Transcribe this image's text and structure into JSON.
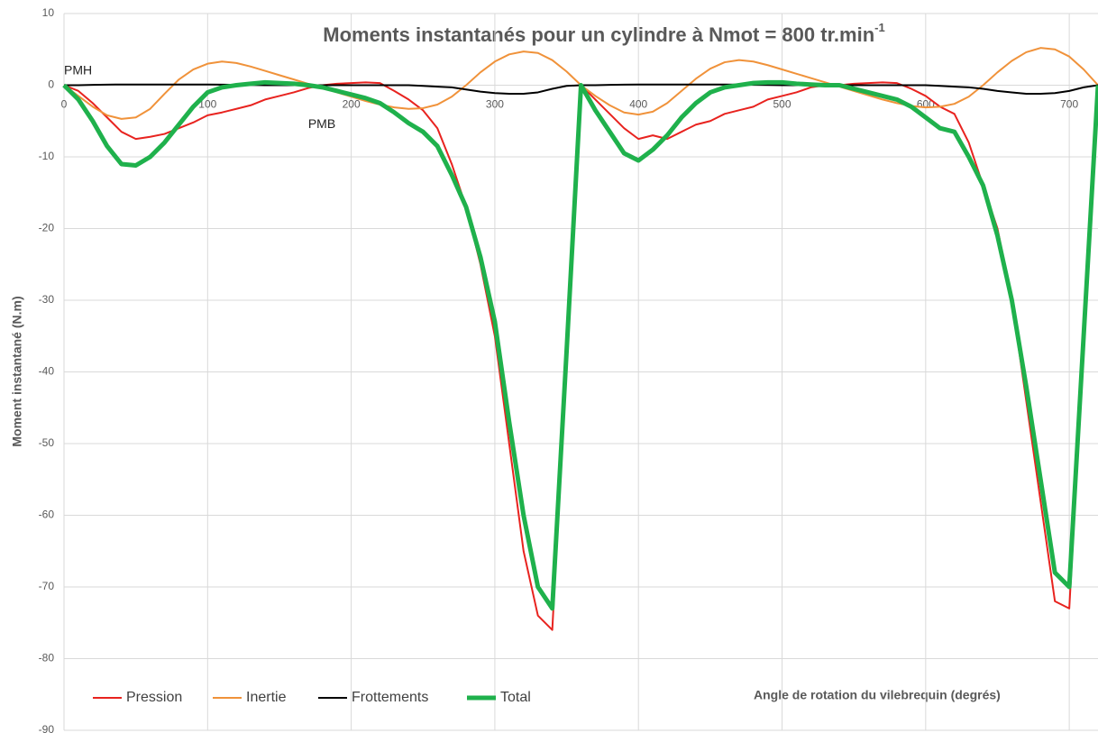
{
  "chart_data": {
    "type": "line",
    "title": "Moments instantanés pour un cylindre à Nmot = 800 tr.min",
    "title_superscript": "-1",
    "xlabel": "Angle de rotation du vilebrequin (degrés)",
    "ylabel": "Moment instantané (N.m)",
    "annotations": [
      {
        "text": "PMH",
        "x": 0,
        "y": 2
      },
      {
        "text": "PMB",
        "x": 170,
        "y": -5.5
      }
    ],
    "x": [
      0,
      10,
      20,
      30,
      40,
      50,
      60,
      70,
      80,
      90,
      100,
      110,
      120,
      130,
      140,
      150,
      160,
      170,
      180,
      190,
      200,
      210,
      220,
      230,
      240,
      250,
      260,
      270,
      280,
      290,
      300,
      310,
      320,
      330,
      340,
      350,
      360,
      370,
      380,
      390,
      400,
      410,
      420,
      430,
      440,
      450,
      460,
      470,
      480,
      490,
      500,
      510,
      520,
      530,
      540,
      550,
      560,
      570,
      580,
      590,
      600,
      610,
      620,
      630,
      640,
      650,
      660,
      670,
      680,
      690,
      700,
      710,
      720
    ],
    "series": [
      {
        "name": "Pression",
        "color": "#e8231f",
        "width": 2,
        "values": [
          0,
          -0.8,
          -2.5,
          -4.5,
          -6.5,
          -7.5,
          -7.2,
          -6.8,
          -6,
          -5.2,
          -4.2,
          -3.8,
          -3.3,
          -2.8,
          -2,
          -1.5,
          -1,
          -0.4,
          0,
          0.2,
          0.3,
          0.4,
          0.3,
          -0.8,
          -2,
          -3.5,
          -6,
          -11,
          -17,
          -25,
          -35,
          -50,
          -65,
          -74,
          -76,
          -38,
          0,
          -2,
          -4,
          -6,
          -7.5,
          -7,
          -7.5,
          -6.5,
          -5.5,
          -5,
          -4,
          -3.5,
          -3,
          -2,
          -1.5,
          -1,
          -0.3,
          0,
          0,
          0.2,
          0.3,
          0.4,
          0.3,
          -0.5,
          -1.5,
          -3,
          -4,
          -8,
          -14,
          -20,
          -30,
          -44,
          -58,
          -72,
          -73,
          -36,
          0
        ]
      },
      {
        "name": "Inertie",
        "color": "#f0923a",
        "width": 2,
        "values": [
          0,
          -1.5,
          -3,
          -4.2,
          -4.7,
          -4.5,
          -3.3,
          -1.2,
          0.8,
          2.2,
          3,
          3.3,
          3.1,
          2.6,
          2,
          1.4,
          0.8,
          0.2,
          -0.4,
          -1,
          -1.6,
          -2.2,
          -2.7,
          -3.1,
          -3.3,
          -3.2,
          -2.7,
          -1.6,
          0,
          1.8,
          3.3,
          4.3,
          4.7,
          4.5,
          3.5,
          1.9,
          0,
          -1.5,
          -2.8,
          -3.8,
          -4.1,
          -3.7,
          -2.5,
          -0.8,
          0.9,
          2.3,
          3.2,
          3.5,
          3.3,
          2.8,
          2.2,
          1.6,
          1,
          0.4,
          -0.2,
          -0.8,
          -1.4,
          -2,
          -2.5,
          -2.9,
          -3.1,
          -3,
          -2.6,
          -1.6,
          0,
          1.8,
          3.4,
          4.6,
          5.2,
          5,
          4,
          2.2,
          0
        ]
      },
      {
        "name": "Frottements",
        "color": "#000000",
        "width": 2,
        "values": [
          0,
          0,
          0.05,
          0.08,
          0.1,
          0.1,
          0.1,
          0.1,
          0.1,
          0.1,
          0.1,
          0.08,
          0.05,
          0.03,
          0,
          0,
          0,
          0,
          0,
          0,
          0,
          0,
          0,
          0,
          0,
          -0.1,
          -0.2,
          -0.3,
          -0.6,
          -0.9,
          -1.1,
          -1.2,
          -1.2,
          -1,
          -0.5,
          -0.1,
          0,
          0,
          0.05,
          0.08,
          0.1,
          0.1,
          0.1,
          0.1,
          0.1,
          0.1,
          0.1,
          0.08,
          0.05,
          0.03,
          0,
          0,
          0,
          0,
          0,
          0,
          0,
          0,
          0,
          0,
          0,
          -0.1,
          -0.2,
          -0.3,
          -0.5,
          -0.8,
          -1,
          -1.2,
          -1.2,
          -1.1,
          -0.8,
          -0.3,
          0
        ]
      },
      {
        "name": "Total",
        "color": "#1fb14c",
        "width": 5,
        "values": [
          0,
          -2,
          -5,
          -8.5,
          -11,
          -11.2,
          -10,
          -8,
          -5.5,
          -3,
          -1,
          -0.3,
          0,
          0.2,
          0.4,
          0.3,
          0.2,
          0,
          -0.3,
          -0.8,
          -1.3,
          -1.8,
          -2.5,
          -3.8,
          -5.3,
          -6.5,
          -8.5,
          -12.5,
          -17,
          -24,
          -33,
          -47,
          -60,
          -70,
          -73,
          -37,
          0,
          -3.5,
          -6.5,
          -9.5,
          -10.5,
          -9,
          -7,
          -4.5,
          -2.5,
          -1,
          -0.3,
          0,
          0.3,
          0.4,
          0.4,
          0.2,
          0.1,
          0,
          0,
          -0.5,
          -1,
          -1.5,
          -2,
          -3,
          -4.5,
          -6,
          -6.5,
          -10,
          -14,
          -21,
          -30,
          -42,
          -55,
          -68,
          -70,
          -35,
          0
        ]
      }
    ],
    "xlim": [
      0,
      720
    ],
    "ylim": [
      -90,
      10
    ],
    "xticks": [
      0,
      100,
      200,
      300,
      400,
      500,
      600,
      700
    ],
    "yticks": [
      10,
      0,
      -10,
      -20,
      -30,
      -40,
      -50,
      -60,
      -70,
      -80,
      -90
    ],
    "grid": true,
    "legend": "lower left"
  }
}
